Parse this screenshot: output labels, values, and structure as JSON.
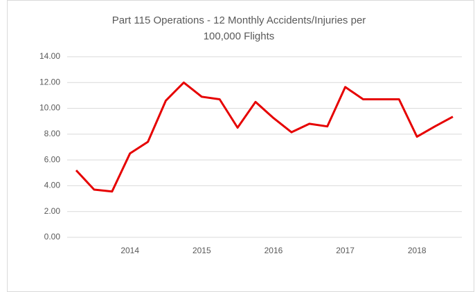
{
  "chart_data": {
    "type": "line",
    "title": [
      "Part 115 Operations - 12 Monthly Accidents/Injuries per",
      "100,000 Flights"
    ],
    "categories": [
      null,
      null,
      null,
      "2014",
      null,
      null,
      null,
      "2015",
      null,
      null,
      null,
      "2016",
      null,
      null,
      null,
      "2017",
      null,
      null,
      null,
      "2018",
      null,
      null
    ],
    "series": [
      {
        "name": "Accidents/Injuries per 100,000 Flights",
        "color": "#e60000",
        "values": [
          5.2,
          3.7,
          3.55,
          6.5,
          7.4,
          10.6,
          12.0,
          10.9,
          10.7,
          8.5,
          10.5,
          9.25,
          8.15,
          8.8,
          8.6,
          11.65,
          10.7,
          10.7,
          10.7,
          7.8,
          8.6,
          9.35
        ]
      }
    ],
    "ylim": [
      0,
      14
    ],
    "yticks": [
      {
        "value": 0,
        "label": "0.00"
      },
      {
        "value": 2,
        "label": "2.00"
      },
      {
        "value": 4,
        "label": "4.00"
      },
      {
        "value": 6,
        "label": "6.00"
      },
      {
        "value": 8,
        "label": "8.00"
      },
      {
        "value": 10,
        "label": "10.00"
      },
      {
        "value": 12,
        "label": "12.00"
      },
      {
        "value": 14,
        "label": "14.00"
      }
    ],
    "grid": true
  }
}
